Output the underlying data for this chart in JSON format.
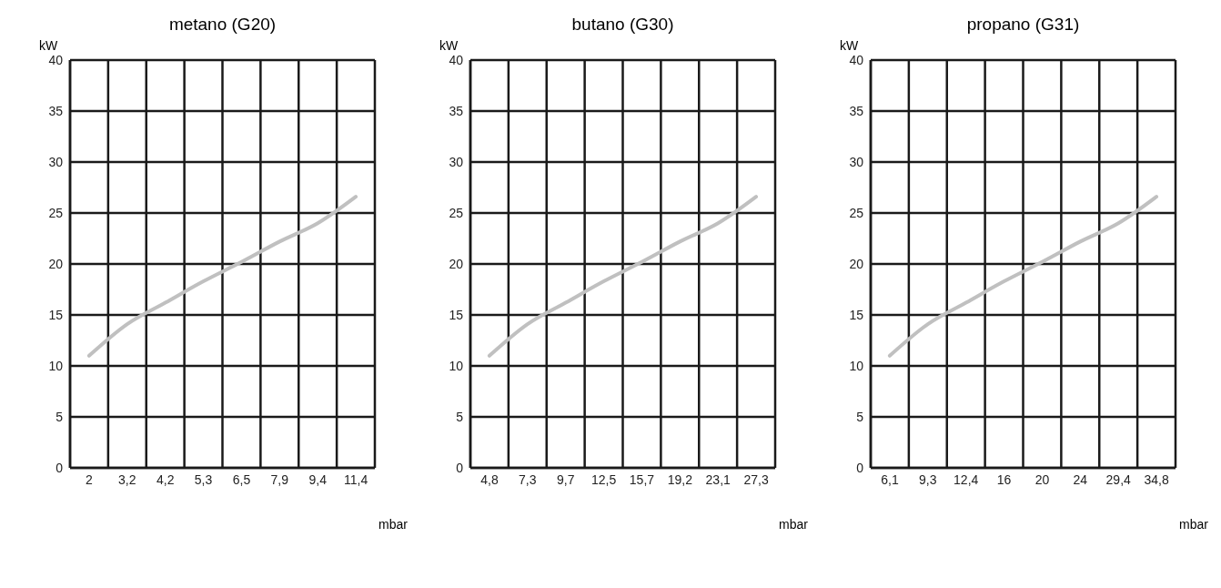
{
  "chart_data": [
    {
      "type": "line",
      "title": "metano (G20)",
      "xlabel": "mbar",
      "ylabel": "kW",
      "categories": [
        "2",
        "3,2",
        "4,2",
        "5,3",
        "6,5",
        "7,9",
        "9,4",
        "11,4"
      ],
      "series": [
        {
          "color": "#c0c0c0",
          "values": [
            11,
            14.1,
            16.2,
            18.3,
            20.2,
            22.2,
            24,
            26.6
          ]
        }
      ],
      "ylim": [
        0,
        40
      ],
      "yticks": [
        0,
        5,
        10,
        15,
        20,
        25,
        30,
        35,
        40
      ],
      "grid": true,
      "legend": false,
      "marker": "none",
      "line_style": "solid"
    },
    {
      "type": "line",
      "title": "butano (G30)",
      "xlabel": "mbar",
      "ylabel": "kW",
      "categories": [
        "4,8",
        "7,3",
        "9,7",
        "12,5",
        "15,7",
        "19,2",
        "23,1",
        "27,3"
      ],
      "series": [
        {
          "color": "#c0c0c0",
          "values": [
            11,
            14.1,
            16.2,
            18.3,
            20.2,
            22.2,
            24,
            26.6
          ]
        }
      ],
      "ylim": [
        0,
        40
      ],
      "yticks": [
        0,
        5,
        10,
        15,
        20,
        25,
        30,
        35,
        40
      ],
      "grid": true,
      "legend": false,
      "marker": "none",
      "line_style": "solid"
    },
    {
      "type": "line",
      "title": "propano (G31)",
      "xlabel": "mbar",
      "ylabel": "kW",
      "categories": [
        "6,1",
        "9,3",
        "12,4",
        "16",
        "20",
        "24",
        "29,4",
        "34,8"
      ],
      "series": [
        {
          "color": "#c0c0c0",
          "values": [
            11,
            14.1,
            16.2,
            18.3,
            20.2,
            22.2,
            24,
            26.6
          ]
        }
      ],
      "ylim": [
        0,
        40
      ],
      "yticks": [
        0,
        5,
        10,
        15,
        20,
        25,
        30,
        35,
        40
      ],
      "grid": true,
      "legend": false,
      "marker": "none",
      "line_style": "solid"
    }
  ]
}
